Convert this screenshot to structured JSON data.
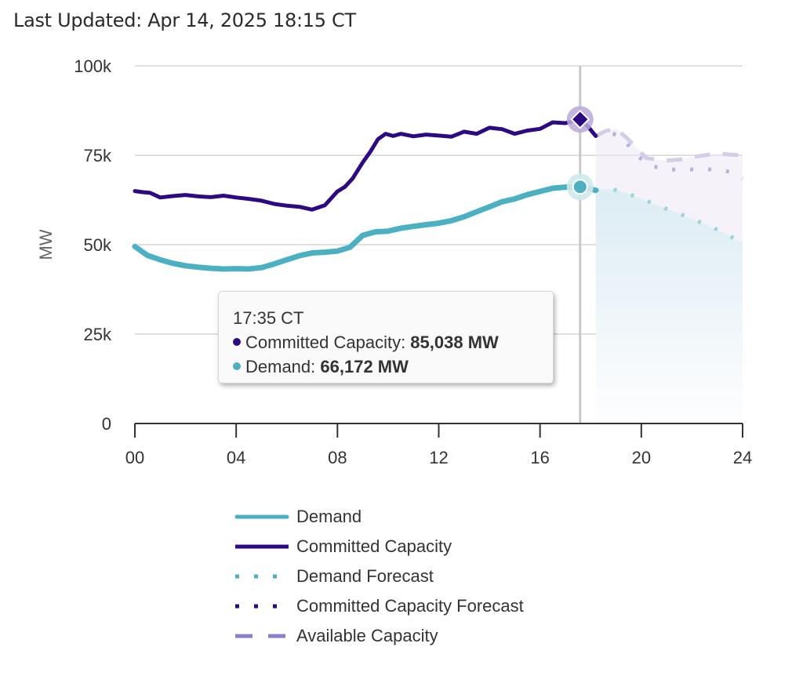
{
  "header": {
    "last_updated": "Last Updated: Apr 14, 2025 18:15 CT"
  },
  "colors": {
    "demand": "#4bb0c2",
    "committed": "#2e0a82",
    "demand_forecast": "#4bb0c2",
    "committed_forecast": "#2e0a82",
    "available": "#8b7fcb",
    "gridline": "#e0e0e0",
    "crosshair": "#c8c8c8"
  },
  "tooltip": {
    "time": "17:35 CT",
    "rows": [
      {
        "label": "Committed Capacity: ",
        "value": "85,038 MW",
        "color": "#2e0a82"
      },
      {
        "label": "Demand: ",
        "value": "66,172 MW",
        "color": "#4bb0c2"
      }
    ]
  },
  "chart_data": {
    "type": "line",
    "title": "",
    "xlabel": "",
    "ylabel": "MW",
    "xlim": [
      0,
      24
    ],
    "ylim": [
      0,
      100000
    ],
    "grid": true,
    "x_ticks": [
      0,
      4,
      8,
      12,
      16,
      20,
      24
    ],
    "x_tick_labels": [
      "00",
      "04",
      "08",
      "12",
      "16",
      "20",
      "24"
    ],
    "y_ticks": [
      0,
      25000,
      50000,
      75000,
      100000
    ],
    "y_tick_labels": [
      "0",
      "25k",
      "50k",
      "75k",
      "100k"
    ],
    "legend_position": "bottom",
    "crosshair_x": 17.583,
    "series": [
      {
        "name": "Demand",
        "style": "solid",
        "x": [
          0,
          0.5,
          1,
          1.5,
          2,
          2.5,
          3,
          3.5,
          4,
          4.5,
          5,
          5.5,
          6,
          6.5,
          7,
          7.5,
          8,
          8.5,
          9,
          9.5,
          10,
          10.5,
          11,
          11.5,
          12,
          12.5,
          13,
          13.5,
          14,
          14.5,
          15,
          15.5,
          16,
          16.5,
          17,
          17.583,
          18,
          18.2
        ],
        "y": [
          49500,
          47000,
          45800,
          44800,
          44100,
          43700,
          43400,
          43200,
          43300,
          43200,
          43600,
          44600,
          45800,
          46900,
          47700,
          47900,
          48200,
          49300,
          52600,
          53600,
          53800,
          54600,
          55100,
          55600,
          56000,
          56700,
          57800,
          59200,
          60600,
          62000,
          62800,
          64000,
          64900,
          65800,
          66100,
          66172,
          65600,
          65200
        ]
      },
      {
        "name": "Committed Capacity",
        "style": "solid",
        "x": [
          0,
          0.3,
          0.6,
          1,
          1.5,
          2,
          2.5,
          3,
          3.5,
          4,
          4.5,
          5,
          5.5,
          6,
          6.5,
          7,
          7.5,
          8,
          8.3,
          8.6,
          9,
          9.3,
          9.6,
          9.9,
          10.2,
          10.5,
          11,
          11.5,
          12,
          12.5,
          13,
          13.5,
          14,
          14.5,
          15,
          15.5,
          16,
          16.5,
          17,
          17.583,
          17.9,
          18.2
        ],
        "y": [
          65000,
          64700,
          64500,
          63200,
          63600,
          63900,
          63500,
          63300,
          63700,
          63200,
          62800,
          62300,
          61400,
          60900,
          60600,
          59800,
          61000,
          64900,
          66200,
          68500,
          73000,
          76000,
          79500,
          81000,
          80400,
          81000,
          80300,
          80800,
          80500,
          80200,
          81600,
          81000,
          82700,
          82300,
          81000,
          81900,
          82400,
          84200,
          84000,
          85038,
          83000,
          80400
        ]
      },
      {
        "name": "Demand Forecast",
        "style": "dotted",
        "x": [
          18.2,
          18.5,
          19,
          19.5,
          20,
          20.5,
          21,
          21.5,
          22,
          22.5,
          23,
          23.5,
          24
        ],
        "y": [
          65200,
          65600,
          65300,
          64200,
          62800,
          61500,
          60000,
          58700,
          57200,
          55800,
          54200,
          52400,
          50500
        ]
      },
      {
        "name": "Committed Capacity Forecast",
        "style": "dotted",
        "x": [
          18.2,
          18.6,
          19,
          19.4,
          19.8,
          20.3,
          21,
          21.7,
          22.4,
          23.1,
          23.7,
          24
        ],
        "y": [
          80400,
          81500,
          80800,
          78500,
          75200,
          72200,
          71000,
          71000,
          71100,
          71000,
          70000,
          68500
        ]
      },
      {
        "name": "Available Capacity",
        "style": "dashed",
        "x": [
          18.2,
          18.6,
          19,
          19.4,
          19.8,
          20.2,
          20.6,
          21,
          21.5,
          22,
          22.5,
          23,
          23.5,
          24
        ],
        "y": [
          80400,
          81800,
          82500,
          80000,
          77200,
          74200,
          73800,
          73500,
          73800,
          74500,
          75000,
          75500,
          75200,
          75000
        ]
      }
    ],
    "tooltip_point": {
      "time": "17:35 CT",
      "committed_capacity": 85038,
      "demand": 66172
    }
  },
  "legend": {
    "items": [
      {
        "label": "Demand",
        "style": "solid",
        "color": "#4bb0c2"
      },
      {
        "label": "Committed Capacity",
        "style": "solid",
        "color": "#2e0a82"
      },
      {
        "label": "Demand Forecast",
        "style": "dotted",
        "color": "#4bb0c2"
      },
      {
        "label": "Committed Capacity Forecast",
        "style": "dotted",
        "color": "#2e0a82"
      },
      {
        "label": "Available Capacity",
        "style": "dashed",
        "color": "#8b7fcb"
      }
    ]
  }
}
